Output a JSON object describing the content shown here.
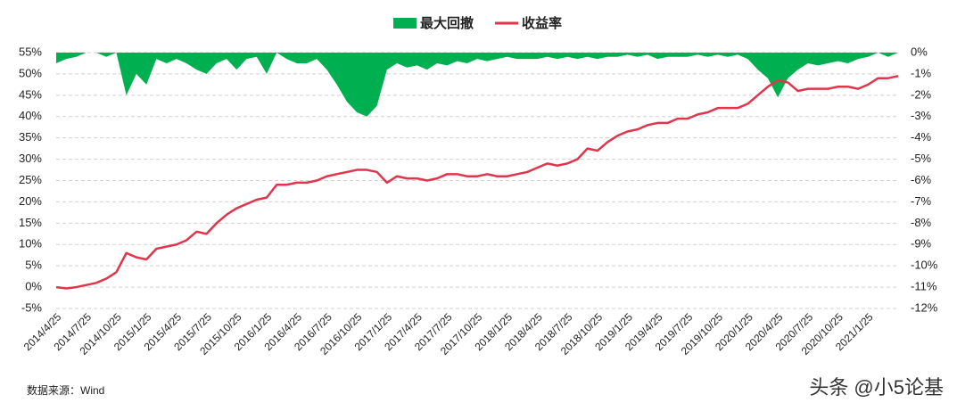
{
  "chart_data": {
    "type": "combo",
    "categories": [
      "2014/4/25",
      null,
      null,
      "2014/7/25",
      null,
      null,
      "2014/10/25",
      null,
      null,
      "2015/1/25",
      null,
      null,
      "2015/4/25",
      null,
      null,
      "2015/7/25",
      null,
      null,
      "2015/10/25",
      null,
      null,
      "2016/1/25",
      null,
      null,
      "2016/4/25",
      null,
      null,
      "2016/7/25",
      null,
      null,
      "2016/10/25",
      null,
      null,
      "2017/1/25",
      null,
      null,
      "2017/4/25",
      null,
      null,
      "2017/7/25",
      null,
      null,
      "2017/10/25",
      null,
      null,
      "2018/1/25",
      null,
      null,
      "2018/4/25",
      null,
      null,
      "2018/7/25",
      null,
      null,
      "2018/10/25",
      null,
      null,
      "2019/1/25",
      null,
      null,
      "2019/4/25",
      null,
      null,
      "2019/7/25",
      null,
      null,
      "2019/10/25",
      null,
      null,
      "2020/1/25",
      null,
      null,
      "2020/4/25",
      null,
      null,
      "2020/7/25",
      null,
      null,
      "2020/10/25",
      null,
      null,
      "2021/1/25",
      null,
      null,
      null
    ],
    "series": [
      {
        "name": "最大回撤",
        "type": "area",
        "axis": "y2",
        "color": "#00b050",
        "values": [
          -0.5,
          -0.3,
          -0.2,
          0,
          0,
          -0.2,
          0,
          -2,
          -1,
          -1.5,
          -0.3,
          -0.5,
          -0.3,
          -0.5,
          -0.8,
          -1,
          -0.5,
          -0.3,
          -0.8,
          -0.3,
          -0.2,
          -1,
          0,
          -0.3,
          -0.5,
          -0.5,
          -0.3,
          -0.8,
          -1.5,
          -2.3,
          -2.8,
          -3,
          -2.5,
          -0.8,
          -0.5,
          -0.7,
          -0.6,
          -0.8,
          -0.5,
          -0.6,
          -0.4,
          -0.5,
          -0.3,
          -0.4,
          -0.3,
          -0.2,
          -0.3,
          -0.3,
          -0.3,
          -0.2,
          -0.3,
          -0.2,
          -0.3,
          -0.2,
          -0.3,
          -0.2,
          -0.2,
          -0.1,
          -0.2,
          -0.1,
          -0.3,
          -0.2,
          -0.2,
          -0.2,
          -0.1,
          -0.2,
          -0.1,
          -0.2,
          -0.1,
          -0.3,
          -0.8,
          -1.2,
          -2.1,
          -1.2,
          -0.8,
          -0.5,
          -0.6,
          -0.5,
          -0.4,
          -0.5,
          -0.3,
          -0.2,
          0,
          -0.2,
          0
        ]
      },
      {
        "name": "收益率",
        "type": "line",
        "color": "#e0354b",
        "values": [
          0,
          -0.3,
          0,
          0.5,
          1,
          2,
          3.5,
          8,
          7,
          6.5,
          9,
          9.5,
          10,
          11,
          13,
          12.5,
          15,
          17,
          18.5,
          19.5,
          20.5,
          21,
          24,
          24,
          24.5,
          24.5,
          25,
          26,
          26.5,
          27,
          27.5,
          27.5,
          27,
          24.5,
          26,
          25.5,
          25.5,
          25,
          25.5,
          26.5,
          26.5,
          26,
          26,
          26.5,
          26,
          26,
          26.5,
          27,
          28,
          29,
          28.5,
          29,
          30,
          32.5,
          32,
          34,
          35.5,
          36.5,
          37,
          38,
          38.5,
          38.5,
          39.5,
          39.5,
          40.5,
          41,
          42,
          42,
          42,
          43,
          45,
          47,
          48.5,
          48,
          46,
          46.5,
          46.5,
          46.5,
          47,
          47,
          46.5,
          47.5,
          49,
          49,
          49.5
        ]
      }
    ],
    "ylim": [
      -5,
      55
    ],
    "yticks": [
      {
        "value": -5,
        "label": "-5%"
      },
      {
        "value": 0,
        "label": "0%"
      },
      {
        "value": 5,
        "label": "5%"
      },
      {
        "value": 10,
        "label": "10%"
      },
      {
        "value": 15,
        "label": "15%"
      },
      {
        "value": 20,
        "label": "20%"
      },
      {
        "value": 25,
        "label": "25%"
      },
      {
        "value": 30,
        "label": "30%"
      },
      {
        "value": 35,
        "label": "35%"
      },
      {
        "value": 40,
        "label": "40%"
      },
      {
        "value": 45,
        "label": "45%"
      },
      {
        "value": 50,
        "label": "50%"
      },
      {
        "value": 55,
        "label": "55%"
      }
    ],
    "y2lim": [
      -12,
      0
    ],
    "y2ticks": [
      {
        "value": -12,
        "label": "-12%"
      },
      {
        "value": -11,
        "label": "-11%"
      },
      {
        "value": -10,
        "label": "-10%"
      },
      {
        "value": -9,
        "label": "-9%"
      },
      {
        "value": -8,
        "label": "-8%"
      },
      {
        "value": -7,
        "label": "-7%"
      },
      {
        "value": -6,
        "label": "-6%"
      },
      {
        "value": -5,
        "label": "-5%"
      },
      {
        "value": -4,
        "label": "-4%"
      },
      {
        "value": -3,
        "label": "-3%"
      },
      {
        "value": -2,
        "label": "-2%"
      },
      {
        "value": -1,
        "label": "-1%"
      },
      {
        "value": 0,
        "label": "0%"
      }
    ],
    "grid": true,
    "legend": "top",
    "source": "数据来源：Wind",
    "watermark": "头条 @小5论基"
  }
}
